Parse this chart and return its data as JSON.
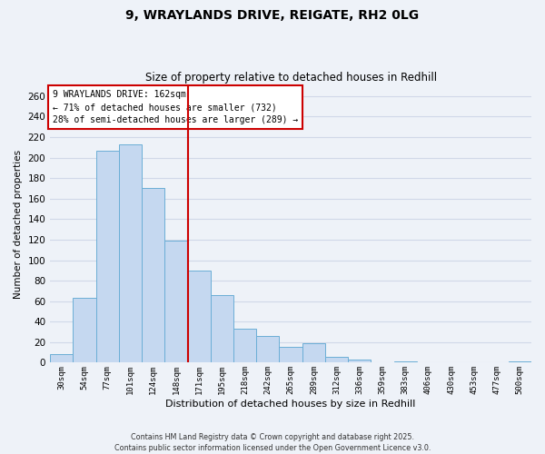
{
  "title": "9, WRAYLANDS DRIVE, REIGATE, RH2 0LG",
  "subtitle": "Size of property relative to detached houses in Redhill",
  "xlabel": "Distribution of detached houses by size in Redhill",
  "ylabel": "Number of detached properties",
  "bar_labels": [
    "30sqm",
    "54sqm",
    "77sqm",
    "101sqm",
    "124sqm",
    "148sqm",
    "171sqm",
    "195sqm",
    "218sqm",
    "242sqm",
    "265sqm",
    "289sqm",
    "312sqm",
    "336sqm",
    "359sqm",
    "383sqm",
    "406sqm",
    "430sqm",
    "453sqm",
    "477sqm",
    "500sqm"
  ],
  "bar_values": [
    8,
    63,
    207,
    213,
    170,
    119,
    90,
    66,
    33,
    26,
    15,
    19,
    6,
    3,
    0,
    1,
    0,
    0,
    0,
    0,
    1
  ],
  "bar_color": "#c5d8f0",
  "bar_edge_color": "#6baed6",
  "ylim": [
    0,
    270
  ],
  "yticks": [
    0,
    20,
    40,
    60,
    80,
    100,
    120,
    140,
    160,
    180,
    200,
    220,
    240,
    260
  ],
  "vline_x": 5.5,
  "vline_color": "#cc0000",
  "annotation_title": "9 WRAYLANDS DRIVE: 162sqm",
  "annotation_line1": "← 71% of detached houses are smaller (732)",
  "annotation_line2": "28% of semi-detached houses are larger (289) →",
  "annotation_box_edge": "#cc0000",
  "footer_line1": "Contains HM Land Registry data © Crown copyright and database right 2025.",
  "footer_line2": "Contains public sector information licensed under the Open Government Licence v3.0.",
  "background_color": "#eef2f8",
  "grid_color": "#d0d8e8"
}
